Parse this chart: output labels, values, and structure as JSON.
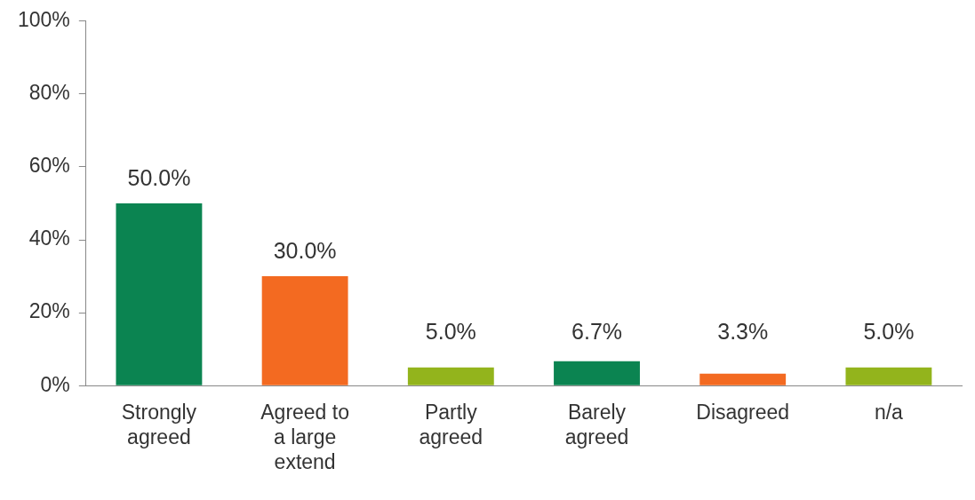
{
  "chart_data": {
    "type": "bar",
    "categories": [
      "Strongly agreed",
      "Agreed to a large extend",
      "Partly agreed",
      "Barely agreed",
      "Disagreed",
      "n/a"
    ],
    "values": [
      50,
      30,
      5,
      6.7,
      3.3,
      5
    ],
    "colors": [
      "#0b8451",
      "#f36a21",
      "#93b41c",
      "#0b8451",
      "#f36a21",
      "#93b41c"
    ],
    "value_labels": [
      "50.0%",
      "30.0%",
      "5.0%",
      "6.7%",
      "3.3%",
      "5.0%"
    ],
    "ylim": [
      0,
      100
    ],
    "yticks": [
      {
        "value": 0,
        "label": "0%"
      },
      {
        "value": 20,
        "label": "20%"
      },
      {
        "value": 40,
        "label": "40%"
      },
      {
        "value": 60,
        "label": "60%"
      },
      {
        "value": 80,
        "label": "80%"
      },
      {
        "value": 100,
        "label": "100%"
      }
    ],
    "grid": false,
    "legend": false
  }
}
